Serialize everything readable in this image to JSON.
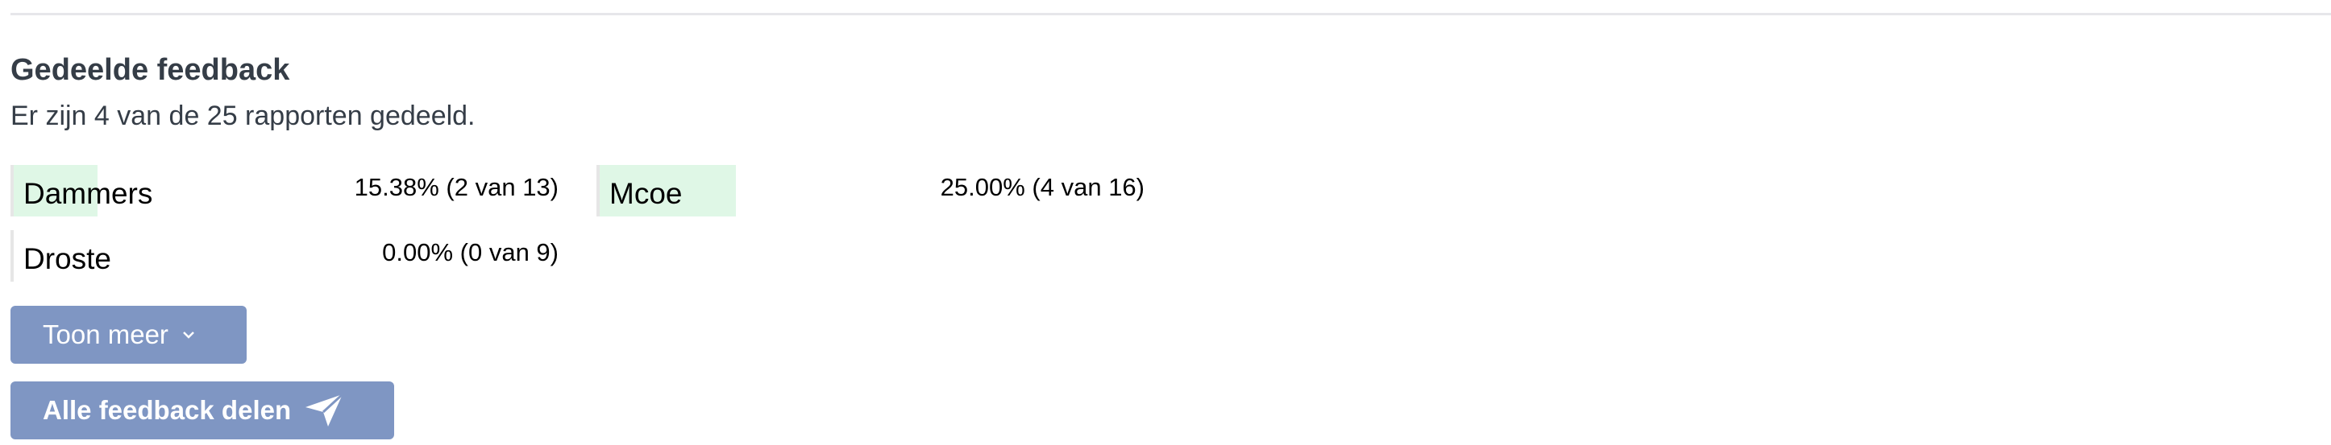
{
  "section": {
    "title": "Gedeelde feedback",
    "subtitle": "Er zijn 4 van de 25 rapporten gedeeld."
  },
  "items": [
    {
      "name": "Dammers",
      "value": "15.38% (2 van 13)",
      "percent": 15.38
    },
    {
      "name": "Mcoe",
      "value": "25.00% (4 van 16)",
      "percent": 25.0
    },
    {
      "name": "Droste",
      "value": "0.00% (0 van 9)",
      "percent": 0
    }
  ],
  "buttons": {
    "show_more": {
      "label": "Toon meer",
      "icon": "chevron-down-icon"
    },
    "share_all": {
      "label": "Alle feedback delen",
      "icon": "paper-plane-icon"
    }
  },
  "colors": {
    "bar": "#dff7e6",
    "button": "#7f96c3",
    "title": "#353d47"
  }
}
